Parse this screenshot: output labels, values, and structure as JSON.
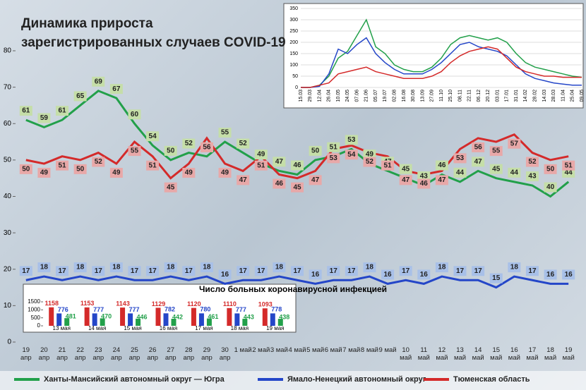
{
  "chart_data": [
    {
      "type": "line",
      "title": "Динамика прироста\nзарегистрированных случаев COVID-19",
      "categories": [
        "19 апр",
        "20 апр",
        "21 апр",
        "22 апр",
        "23 апр",
        "24 апр",
        "25 апр",
        "26 апр",
        "27 апр",
        "28 апр",
        "29 апр",
        "30 апр",
        "1 май",
        "2 май",
        "3 май",
        "4 май",
        "5 май",
        "6 май",
        "7 май",
        "8 май",
        "9 май",
        "10 май",
        "11 май",
        "12 май",
        "13 май",
        "14 май",
        "15 май",
        "16 май",
        "17 май",
        "18 май",
        "19 май"
      ],
      "series": [
        {
          "name": "Ханты-Мансийский автономный округ — Югра",
          "color": "#22a04a",
          "values": [
            61,
            59,
            61,
            65,
            69,
            67,
            60,
            54,
            50,
            52,
            51,
            55,
            52,
            49,
            47,
            46,
            50,
            51,
            53,
            49,
            47,
            45,
            43,
            46,
            44,
            47,
            45,
            44,
            43,
            40,
            44
          ]
        },
        {
          "name": "Ямало-Ненецкий автономный округ",
          "color": "#2446c8",
          "values": [
            17,
            18,
            17,
            18,
            17,
            18,
            17,
            17,
            18,
            17,
            18,
            16,
            17,
            17,
            18,
            17,
            16,
            17,
            17,
            18,
            16,
            17,
            16,
            18,
            17,
            17,
            15,
            18,
            17,
            16,
            16
          ]
        },
        {
          "name": "Тюменская область",
          "color": "#d42a2a",
          "values": [
            50,
            49,
            51,
            50,
            52,
            49,
            55,
            51,
            45,
            49,
            56,
            49,
            47,
            51,
            46,
            45,
            47,
            53,
            54,
            52,
            51,
            47,
            46,
            47,
            53,
            56,
            55,
            57,
            52,
            50,
            51
          ]
        }
      ],
      "ylim": [
        0,
        80
      ],
      "yticks": [
        0,
        10,
        20,
        30,
        40,
        50,
        60,
        70,
        80
      ],
      "grid": false
    },
    {
      "type": "line",
      "categories": [
        "15.03",
        "29.03",
        "12.04",
        "26.04",
        "10.05",
        "24.05",
        "07.06",
        "21.06",
        "05.07",
        "19.07",
        "02.08",
        "16.08",
        "30.08",
        "13.09",
        "27.09",
        "11.10",
        "25.10",
        "08.11",
        "22.11",
        "06.12",
        "20.12",
        "03.01",
        "17.01",
        "31.01",
        "14.02",
        "28.02",
        "14.03",
        "28.03",
        "11.04",
        "25.04",
        "09.05"
      ],
      "series": [
        {
          "color": "#22a04a",
          "values": [
            0,
            0,
            10,
            50,
            130,
            160,
            230,
            300,
            180,
            150,
            100,
            80,
            70,
            70,
            90,
            130,
            190,
            220,
            230,
            220,
            210,
            220,
            200,
            150,
            110,
            90,
            80,
            70,
            60,
            50,
            45
          ]
        },
        {
          "color": "#2446c8",
          "values": [
            0,
            0,
            5,
            60,
            170,
            150,
            190,
            220,
            150,
            110,
            80,
            60,
            60,
            60,
            80,
            110,
            150,
            190,
            200,
            180,
            170,
            160,
            140,
            100,
            60,
            40,
            30,
            20,
            15,
            10,
            10
          ]
        },
        {
          "color": "#d42a2a",
          "values": [
            0,
            0,
            10,
            20,
            60,
            70,
            80,
            90,
            70,
            60,
            50,
            40,
            40,
            40,
            50,
            70,
            110,
            140,
            160,
            170,
            180,
            170,
            130,
            90,
            70,
            60,
            50,
            50,
            45,
            45,
            45
          ]
        }
      ],
      "ylim": [
        0,
        350
      ],
      "yticks": [
        0,
        50,
        100,
        150,
        200,
        250,
        300,
        350
      ],
      "grid": true
    },
    {
      "type": "bar",
      "title": "Число больных коронавирусной инфекцией",
      "categories": [
        "13 мая",
        "14 мая",
        "15 мая",
        "16 мая",
        "17 мая",
        "18 мая",
        "19 мая"
      ],
      "series": [
        {
          "color": "#d42a2a",
          "values": [
            1158,
            1153,
            1143,
            1129,
            1120,
            1110,
            1093
          ]
        },
        {
          "color": "#2446c8",
          "values": [
            776,
            777,
            777,
            782,
            780,
            777,
            778
          ]
        },
        {
          "color": "#22a04a",
          "values": [
            481,
            470,
            446,
            442,
            461,
            443,
            438
          ]
        }
      ],
      "ylim": [
        0,
        1500
      ],
      "yticks": [
        0,
        500,
        1000,
        1500
      ]
    }
  ]
}
